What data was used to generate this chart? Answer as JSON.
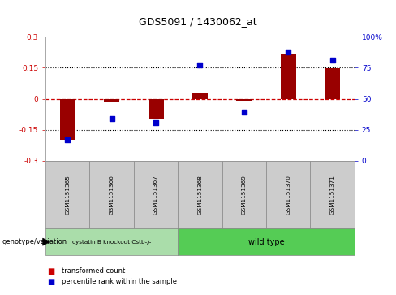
{
  "title": "GDS5091 / 1430062_at",
  "samples": [
    "GSM1151365",
    "GSM1151366",
    "GSM1151367",
    "GSM1151368",
    "GSM1151369",
    "GSM1151370",
    "GSM1151371"
  ],
  "bar_values": [
    -0.2,
    -0.012,
    -0.095,
    0.028,
    -0.008,
    0.215,
    0.148
  ],
  "scatter_values": [
    17,
    34,
    31,
    77,
    39,
    88,
    81
  ],
  "ylim_left": [
    -0.3,
    0.3
  ],
  "ylim_right": [
    0,
    100
  ],
  "yticks_left": [
    -0.3,
    -0.15,
    0.0,
    0.15,
    0.3
  ],
  "yticks_right": [
    0,
    25,
    50,
    75,
    100
  ],
  "ytick_labels_left": [
    "-0.3",
    "-0.15",
    "0",
    "0.15",
    "0.3"
  ],
  "ytick_labels_right": [
    "0",
    "25",
    "50",
    "75",
    "100%"
  ],
  "hlines": [
    0.15,
    -0.15
  ],
  "hline_zero_color": "#cc0000",
  "hline_dotted_color": "black",
  "bar_color": "#990000",
  "scatter_color": "#0000cc",
  "group1_n": 3,
  "group1_label": "cystatin B knockout Cstb-/-",
  "group1_color": "#aaddaa",
  "group2_n": 4,
  "group2_label": "wild type",
  "group2_color": "#55cc55",
  "genotype_label": "genotype/variation",
  "legend_bar_label": "transformed count",
  "legend_scatter_label": "percentile rank within the sample",
  "bar_color_legend": "#cc0000",
  "scatter_color_legend": "#0000cc"
}
